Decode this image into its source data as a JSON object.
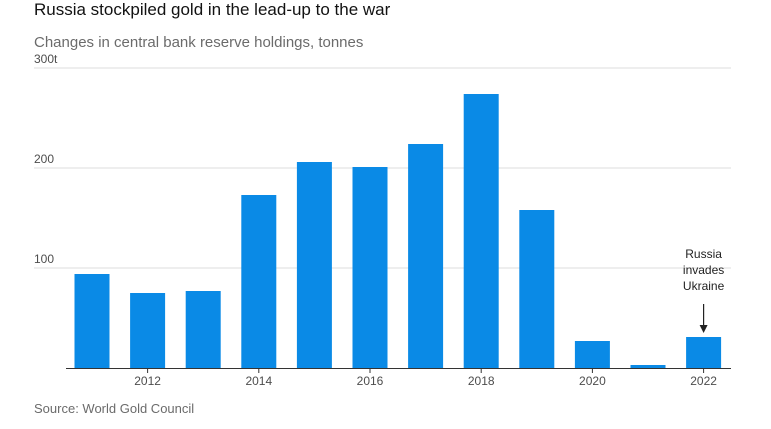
{
  "title": "Russia stockpiled gold in the lead-up to the war",
  "subtitle": "Changes in central bank reserve holdings, tonnes",
  "source": "Source: World Gold Council",
  "chart_data": {
    "type": "bar",
    "categories": [
      "2011",
      "2012",
      "2013",
      "2014",
      "2015",
      "2016",
      "2017",
      "2018",
      "2019",
      "2020",
      "2021",
      "2022"
    ],
    "values": [
      94,
      75,
      77,
      173,
      206,
      201,
      224,
      274,
      158,
      27,
      3,
      31
    ],
    "bar_color": "#0a8ae6",
    "ylim": [
      0,
      300
    ],
    "yticks": [
      {
        "value": 100,
        "label": "100"
      },
      {
        "value": 200,
        "label": "200"
      },
      {
        "value": 300,
        "label": "300t"
      }
    ],
    "xtick_labels": [
      {
        "category": "2012",
        "label": "2012"
      },
      {
        "category": "2014",
        "label": "2014"
      },
      {
        "category": "2016",
        "label": "2016"
      },
      {
        "category": "2018",
        "label": "2018"
      },
      {
        "category": "2020",
        "label": "2020"
      },
      {
        "category": "2022",
        "label": "2022"
      }
    ],
    "grid": true,
    "annotation": {
      "category": "2022",
      "lines": [
        "Russia",
        "invades",
        "Ukraine"
      ]
    }
  }
}
